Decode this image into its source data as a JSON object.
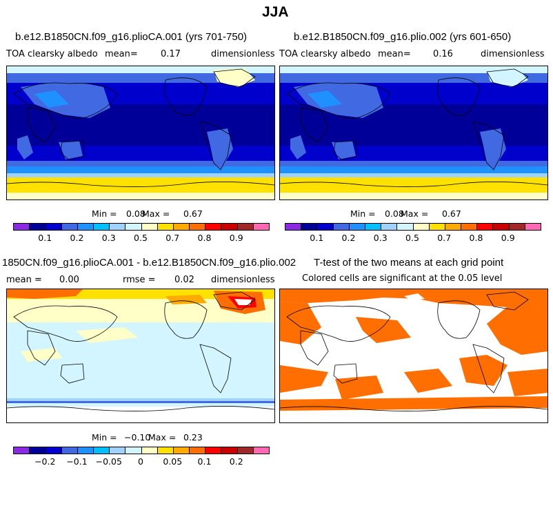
{
  "figure_title": "JJA",
  "panels": {
    "top_left": {
      "title": "b.e12.B1850CN.f09_g16.plioCA.001 (yrs 701-750)",
      "variable": "TOA clearsky albedo",
      "mean_label": "mean=",
      "mean_value": "0.17",
      "units": "dimensionless",
      "min_label": "Min =",
      "min_value": "0.08",
      "max_label": "Max =",
      "max_value": "0.67"
    },
    "top_right": {
      "title": "b.e12.B1850CN.f09_g16.plio.002 (yrs 601-650)",
      "variable": "TOA clearsky albedo",
      "mean_label": "mean=",
      "mean_value": "0.16",
      "units": "dimensionless",
      "min_label": "Min =",
      "min_value": "0.08",
      "max_label": "Max =",
      "max_value": "0.67"
    },
    "bottom_left": {
      "title": "1850CN.f09_g16.plioCA.001 - b.e12.B1850CN.f09_g16.plio.002",
      "mean_label": "mean =",
      "mean_value": "0.00",
      "rmse_label": "rmse =",
      "rmse_value": "0.02",
      "units": "dimensionless",
      "min_label": "Min =",
      "min_value": "−0.10",
      "max_label": "Max =",
      "max_value": "0.23"
    },
    "bottom_right": {
      "title": "T-test of the two means at each grid point",
      "subtitle": "Colored cells are significant at the 0.05 level"
    }
  },
  "colorbars": {
    "albedo": {
      "colors": [
        "#8a2be2",
        "#000099",
        "#0000cd",
        "#4169e1",
        "#1e90ff",
        "#00bfff",
        "#a0d2ff",
        "#d2f5ff",
        "#ffffc8",
        "#ffe100",
        "#ffaa00",
        "#ff6e00",
        "#ff0000",
        "#c80000",
        "#a02828",
        "#ff69b4"
      ],
      "ticks": [
        "0.1",
        "0.2",
        "0.3",
        "0.5",
        "0.7",
        "0.8",
        "0.9"
      ]
    },
    "diff": {
      "colors": [
        "#8a2be2",
        "#000099",
        "#0000cd",
        "#4169e1",
        "#1e90ff",
        "#00bfff",
        "#a0d2ff",
        "#d2f5ff",
        "#ffffc8",
        "#ffe100",
        "#ffaa00",
        "#ff6e00",
        "#ff0000",
        "#c80000",
        "#a02828",
        "#ff69b4"
      ],
      "ticks": [
        "−0.2",
        "−0.1",
        "−0.05",
        "0",
        "0.05",
        "0.1",
        "0.2"
      ]
    }
  },
  "chart_data": [
    {
      "type": "heatmap",
      "title": "b.e12.B1850CN.f09_g16.plioCA.001 (yrs 701-750)",
      "variable": "TOA clearsky albedo",
      "mean": 0.17,
      "min": 0.08,
      "max": 0.67,
      "colorbar_ticks": [
        0.1,
        0.2,
        0.3,
        0.5,
        0.7,
        0.8,
        0.9
      ]
    },
    {
      "type": "heatmap",
      "title": "b.e12.B1850CN.f09_g16.plio.002 (yrs 601-650)",
      "variable": "TOA clearsky albedo",
      "mean": 0.16,
      "min": 0.08,
      "max": 0.67,
      "colorbar_ticks": [
        0.1,
        0.2,
        0.3,
        0.5,
        0.7,
        0.8,
        0.9
      ]
    },
    {
      "type": "heatmap",
      "title": "1850CN.f09_g16.plioCA.001 - b.e12.B1850CN.f09_g16.plio.002",
      "mean": 0.0,
      "rmse": 0.02,
      "min": -0.1,
      "max": 0.23,
      "colorbar_ticks": [
        -0.2,
        -0.1,
        -0.05,
        0,
        0.05,
        0.1,
        0.2
      ]
    },
    {
      "type": "heatmap",
      "title": "T-test of the two means at each grid point",
      "subtitle": "Colored cells are significant at the 0.05 level",
      "significance_level": 0.05
    }
  ]
}
